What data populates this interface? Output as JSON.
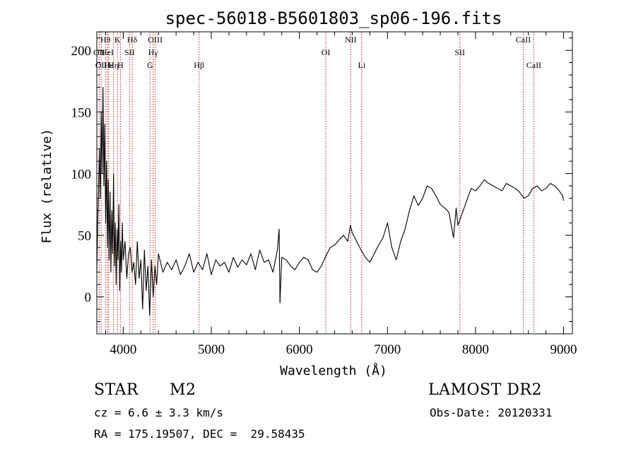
{
  "chart_data": {
    "type": "line",
    "title": "spec-56018-B5601803_sp06-196.fits",
    "xlabel": "Wavelength (Å)",
    "ylabel": "Flux (relative)",
    "xlim": [
      3700,
      9100
    ],
    "ylim": [
      -30,
      215
    ],
    "xticks": [
      4000,
      5000,
      6000,
      7000,
      8000,
      9000
    ],
    "yticks": [
      0,
      50,
      100,
      150,
      200
    ],
    "grid": false,
    "series": [
      {
        "x": [
          3700,
          3710,
          3720,
          3730,
          3740,
          3750,
          3760,
          3770,
          3780,
          3790,
          3800,
          3810,
          3820,
          3830,
          3840,
          3850,
          3860,
          3870,
          3880,
          3890,
          3900,
          3910,
          3920,
          3930,
          3940,
          3950,
          3960,
          3970,
          3980,
          3990,
          4000,
          4020,
          4040,
          4060,
          4080,
          4100,
          4120,
          4140,
          4160,
          4180,
          4200,
          4220,
          4240,
          4260,
          4280,
          4300,
          4320,
          4340,
          4360,
          4380,
          4400,
          4450,
          4500,
          4550,
          4600,
          4650,
          4700,
          4750,
          4800,
          4850,
          4900,
          4950,
          5000,
          5050,
          5100,
          5150,
          5200,
          5250,
          5300,
          5350,
          5400,
          5450,
          5500,
          5550,
          5600,
          5650,
          5700,
          5750,
          5770,
          5780,
          5800,
          5850,
          5900,
          5950,
          6000,
          6050,
          6100,
          6150,
          6200,
          6250,
          6300,
          6350,
          6400,
          6450,
          6500,
          6550,
          6580,
          6600,
          6650,
          6700,
          6750,
          6800,
          6850,
          6900,
          6950,
          7000,
          7050,
          7100,
          7150,
          7200,
          7250,
          7300,
          7350,
          7400,
          7450,
          7500,
          7550,
          7600,
          7650,
          7680,
          7700,
          7720,
          7750,
          7780,
          7800,
          7850,
          7900,
          7950,
          8000,
          8050,
          8100,
          8150,
          8200,
          8250,
          8300,
          8350,
          8400,
          8450,
          8500,
          8550,
          8600,
          8650,
          8700,
          8750,
          8800,
          8850,
          8900,
          8950,
          8990,
          9000
        ],
        "y": [
          20,
          60,
          90,
          120,
          80,
          150,
          100,
          170,
          90,
          140,
          60,
          110,
          40,
          95,
          30,
          85,
          20,
          70,
          35,
          100,
          25,
          60,
          10,
          55,
          30,
          75,
          5,
          45,
          20,
          60,
          30,
          45,
          15,
          35,
          40,
          20,
          28,
          10,
          45,
          15,
          30,
          -10,
          38,
          5,
          25,
          -15,
          30,
          0,
          25,
          10,
          35,
          20,
          28,
          22,
          30,
          18,
          25,
          35,
          20,
          28,
          22,
          35,
          18,
          30,
          25,
          28,
          20,
          32,
          24,
          30,
          26,
          35,
          22,
          38,
          28,
          30,
          20,
          38,
          55,
          -5,
          32,
          30,
          25,
          22,
          28,
          32,
          30,
          22,
          20,
          25,
          33,
          40,
          42,
          46,
          50,
          45,
          58,
          52,
          45,
          38,
          32,
          28,
          35,
          42,
          48,
          60,
          40,
          30,
          45,
          55,
          70,
          82,
          74,
          80,
          90,
          88,
          82,
          75,
          72,
          70,
          68,
          60,
          48,
          72,
          58,
          68,
          78,
          88,
          86,
          90,
          95,
          92,
          90,
          88,
          86,
          92,
          90,
          88,
          85,
          80,
          82,
          88,
          90,
          86,
          88,
          92,
          90,
          86,
          82,
          78
        ]
      }
    ],
    "spectral_lines": [
      {
        "wl": 3727,
        "label": "OII",
        "row": 1
      },
      {
        "wl": 3750,
        "label": "OII",
        "row": 2
      },
      {
        "wl": 3798,
        "label": "Hθ",
        "row": 0
      },
      {
        "wl": 3835,
        "label": "Hε",
        "row": 2
      },
      {
        "wl": 3820,
        "label": "HeI",
        "row": 1
      },
      {
        "wl": 3889,
        "label": "Hη",
        "row": 2
      },
      {
        "wl": 3934,
        "label": "K",
        "row": 0
      },
      {
        "wl": 3968,
        "label": "H",
        "row": 2
      },
      {
        "wl": 4072,
        "label": "SII",
        "row": 1
      },
      {
        "wl": 4102,
        "label": "Hδ",
        "row": 0
      },
      {
        "wl": 4304,
        "label": "G",
        "row": 2
      },
      {
        "wl": 4340,
        "label": "Hγ",
        "row": 1
      },
      {
        "wl": 4363,
        "label": "OIII",
        "row": 0
      },
      {
        "wl": 4861,
        "label": "Hβ",
        "row": 2
      },
      {
        "wl": 6300,
        "label": "OI",
        "row": 1
      },
      {
        "wl": 6583,
        "label": "NII",
        "row": 0
      },
      {
        "wl": 6708,
        "label": "Li",
        "row": 2
      },
      {
        "wl": 7822,
        "label": "SII",
        "row": 1
      },
      {
        "wl": 8542,
        "label": "CaII",
        "row": 0
      },
      {
        "wl": 8662,
        "label": "CaII",
        "row": 2
      }
    ]
  },
  "info": {
    "object_class": "STAR",
    "subclass": "M2",
    "survey": "LAMOST DR2",
    "cz": "cz = 6.6 ± 3.3 km/s",
    "obs_date": "Obs-Date: 20120331",
    "coords": "RA = 175.19507, DEC =  29.58435"
  },
  "colors": {
    "spectrum": "#000000",
    "line_markers": "#b22222",
    "axes": "#000000"
  }
}
